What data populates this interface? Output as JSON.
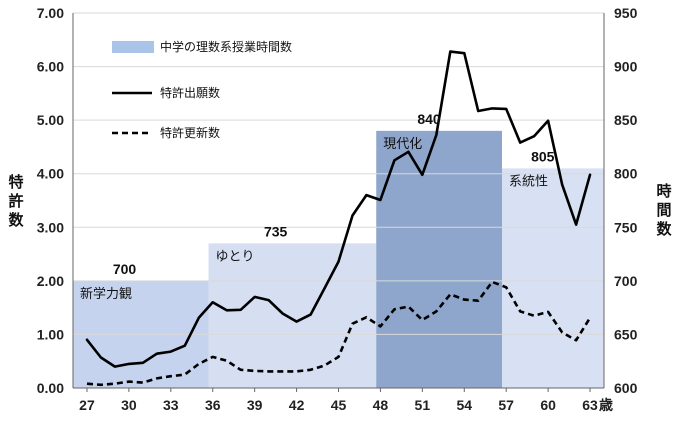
{
  "chart_data": {
    "type": "line",
    "x_tick_labels": [
      "27",
      "30",
      "33",
      "36",
      "39",
      "42",
      "45",
      "48",
      "51",
      "54",
      "57",
      "60",
      "63"
    ],
    "x_tick_values": [
      27,
      30,
      33,
      36,
      39,
      42,
      45,
      48,
      51,
      54,
      57,
      60,
      63
    ],
    "x_unit_suffix": "歳",
    "xlim": [
      26,
      64
    ],
    "y_left": {
      "label": "特許数",
      "ylim": [
        0,
        7
      ],
      "ticks": [
        "0.00",
        "1.00",
        "2.00",
        "3.00",
        "4.00",
        "5.00",
        "6.00",
        "7.00"
      ]
    },
    "y_right": {
      "label": "時間数",
      "ylim": [
        600,
        950
      ],
      "ticks": [
        "600",
        "650",
        "700",
        "750",
        "800",
        "850",
        "900",
        "950"
      ]
    },
    "bands": [
      {
        "name": "新学力観",
        "value": 700,
        "x_start": 26,
        "x_end": 35.7,
        "color": "#c5d3ee"
      },
      {
        "name": "ゆとり",
        "value": 735,
        "x_start": 35.7,
        "x_end": 47.7,
        "color": "#d6dff2"
      },
      {
        "name": "現代化",
        "value": 840,
        "x_start": 47.7,
        "x_end": 56.7,
        "color": "#8ea5cc"
      },
      {
        "name": "系統性",
        "value": 805,
        "x_start": 56.7,
        "x_end": 64,
        "color": "#d8e1f3"
      }
    ],
    "series": [
      {
        "name": "特許出願数",
        "style": "solid",
        "color": "#000000",
        "x": [
          27,
          28,
          29,
          30,
          31,
          32,
          33,
          34,
          35,
          36,
          37,
          38,
          39,
          40,
          41,
          42,
          43,
          44,
          45,
          46,
          47,
          48,
          49,
          50,
          51,
          52,
          53,
          54,
          55,
          56,
          57,
          58,
          59,
          60,
          61,
          62,
          63
        ],
        "values": [
          0.9,
          0.57,
          0.4,
          0.45,
          0.47,
          0.64,
          0.68,
          0.79,
          1.31,
          1.6,
          1.45,
          1.46,
          1.7,
          1.64,
          1.39,
          1.24,
          1.37,
          1.86,
          2.36,
          3.22,
          3.6,
          3.51,
          4.25,
          4.41,
          3.98,
          4.72,
          6.28,
          6.25,
          5.17,
          5.22,
          5.21,
          4.58,
          4.7,
          4.99,
          3.8,
          3.05,
          3.98
        ]
      },
      {
        "name": "特許更新数",
        "style": "dashed",
        "color": "#000000",
        "x": [
          27,
          28,
          29,
          30,
          31,
          32,
          33,
          34,
          35,
          36,
          37,
          38,
          39,
          40,
          41,
          42,
          43,
          44,
          45,
          46,
          47,
          48,
          49,
          50,
          51,
          52,
          53,
          54,
          55,
          56,
          57,
          58,
          59,
          60,
          61,
          62,
          63
        ],
        "values": [
          0.08,
          0.06,
          0.08,
          0.12,
          0.1,
          0.18,
          0.22,
          0.25,
          0.45,
          0.58,
          0.51,
          0.34,
          0.32,
          0.31,
          0.31,
          0.31,
          0.34,
          0.42,
          0.58,
          1.2,
          1.32,
          1.15,
          1.47,
          1.52,
          1.27,
          1.43,
          1.75,
          1.65,
          1.63,
          1.98,
          1.88,
          1.43,
          1.35,
          1.42,
          1.04,
          0.89,
          1.31
        ]
      }
    ],
    "legend": {
      "placement": "top-left",
      "entries": [
        {
          "label": "中学の理数系授業時間数",
          "kind": "band"
        },
        {
          "label": "特許出願数",
          "kind": "solid"
        },
        {
          "label": "特許更新数",
          "kind": "dashed"
        }
      ]
    },
    "grid": {
      "horizontal": true,
      "vertical": false
    }
  },
  "colors": {
    "legend_band_swatch": "#a9c4e8",
    "gridline": "#d9d9d9",
    "axis": "#666666"
  }
}
